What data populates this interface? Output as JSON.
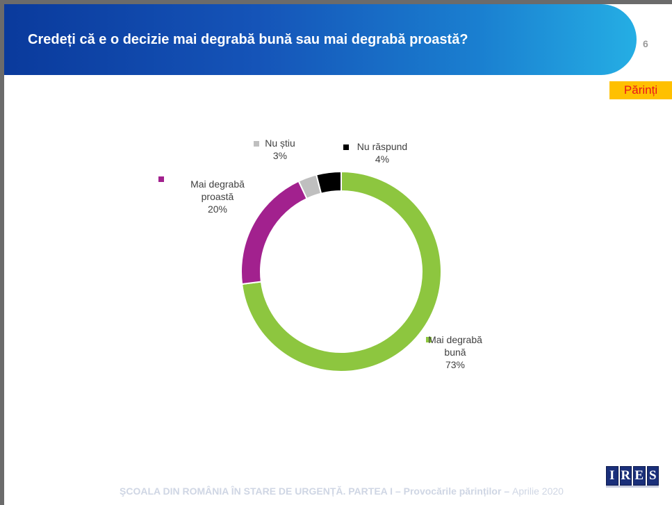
{
  "header": {
    "title": "Credeți că e o decizie mai degrabă bună sau mai degrabă proastă?",
    "page_number": "6"
  },
  "badge": {
    "label": "Părinți",
    "bg_color": "#ffc000",
    "text_color": "#e8141b"
  },
  "chart_data": {
    "type": "pie",
    "variant": "donut",
    "title": "Credeți că e o decizie mai degrabă bună sau mai degrabă proastă?",
    "slices": [
      {
        "name": "Mai degrabă bună",
        "value": 73,
        "label": "73%",
        "color": "#8dc63f",
        "label_lines": [
          "Mai degrabă",
          "bună"
        ]
      },
      {
        "name": "Mai degrabă proastă",
        "value": 20,
        "label": "20%",
        "color": "#a2218e",
        "label_lines": [
          "Mai degrabă",
          "proastă"
        ]
      },
      {
        "name": "Nu știu",
        "value": 3,
        "label": "3%",
        "color": "#bfbfbf",
        "label_lines": [
          "Nu știu"
        ]
      },
      {
        "name": "Nu răspund",
        "value": 4,
        "label": "4%",
        "color": "#000000",
        "label_lines": [
          "Nu răspund"
        ]
      }
    ]
  },
  "footer": {
    "main": "ŞCOALA DIN ROMÂNIA ÎN STARE DE URGENȚĂ. PARTEA I – Provocările părinților – ",
    "date": "Aprilie 2020"
  },
  "logo": {
    "letters": [
      "I",
      "R",
      "E",
      "S"
    ]
  }
}
